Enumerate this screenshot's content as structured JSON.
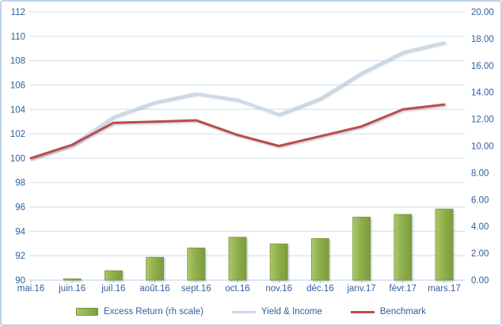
{
  "chart_data": {
    "type": "combo",
    "title": "",
    "categories": [
      "mai.16",
      "juin.16",
      "juil.16",
      "août.16",
      "sept.16",
      "oct.16",
      "nov.16",
      "déc.16",
      "janv.17",
      "févr.17",
      "mars.17"
    ],
    "series": [
      {
        "name": "Excess Return (rh scale)",
        "type": "bar",
        "axis": "right",
        "values": [
          0,
          0.1,
          0.7,
          1.7,
          2.4,
          3.2,
          2.7,
          3.1,
          4.7,
          4.9,
          5.3
        ]
      },
      {
        "name": "Yield & Income",
        "type": "line",
        "axis": "left",
        "values": [
          100.0,
          101.1,
          103.4,
          104.6,
          105.3,
          104.8,
          103.6,
          104.9,
          107.0,
          108.7,
          109.5
        ]
      },
      {
        "name": "Benchmark",
        "type": "line",
        "axis": "left",
        "values": [
          100.0,
          101.1,
          102.9,
          103.0,
          103.1,
          101.9,
          101.0,
          101.8,
          102.6,
          104.0,
          104.4
        ]
      }
    ],
    "left_axis": {
      "min": 90,
      "max": 112,
      "step": 2,
      "ticks": [
        "90",
        "92",
        "94",
        "96",
        "98",
        "100",
        "102",
        "104",
        "106",
        "108",
        "110",
        "112"
      ]
    },
    "right_axis": {
      "min": 0,
      "max": 20,
      "step": 2,
      "ticks": [
        "0.00",
        "2.00",
        "4.00",
        "6.00",
        "8.00",
        "10.00",
        "12.00",
        "14.00",
        "16.00",
        "18.00",
        "20.00"
      ]
    },
    "grid": true,
    "legend_position": "bottom"
  },
  "colors": {
    "bar_fill_light": "#ACC96B",
    "bar_fill": "#8FB04A",
    "bar_fill_dark": "#7C9C3E",
    "bar_border": "#79993D",
    "line_yield": "#CDDAE9",
    "line_benchmark": "#BE4B48",
    "axis_text": "#31609C",
    "gridline": "#D9E5F3",
    "axis_line": "#C3D6EA",
    "frame_border": "#BFD2E8"
  }
}
